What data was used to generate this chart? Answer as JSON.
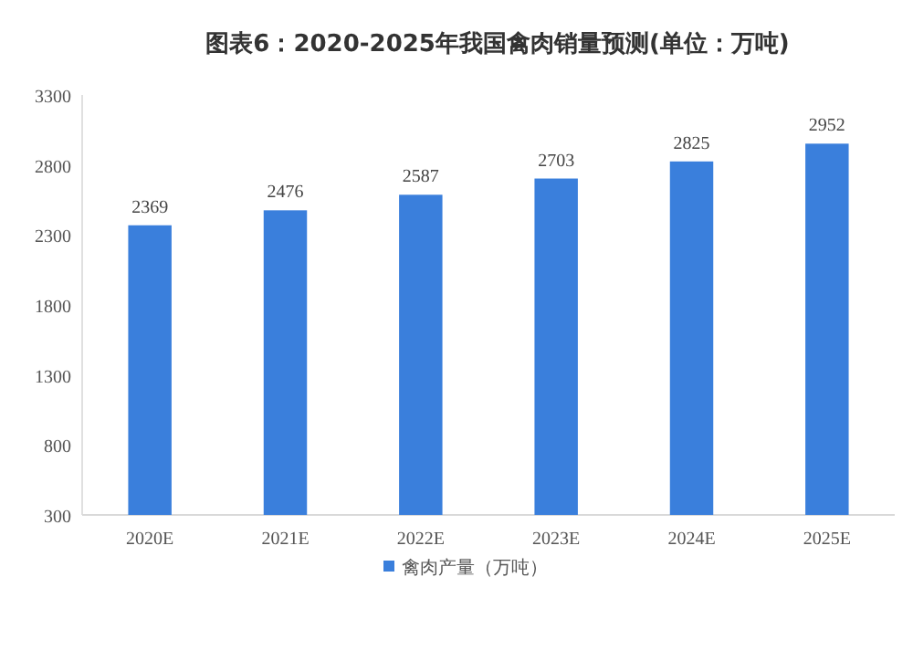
{
  "chart_data": {
    "type": "bar",
    "title": "图表6：2020-2025年我国禽肉销量预测(单位：万吨)",
    "categories": [
      "2020E",
      "2021E",
      "2022E",
      "2023E",
      "2024E",
      "2025E"
    ],
    "series": [
      {
        "name": "禽肉产量（万吨）",
        "color": "#3a7fdc",
        "values": [
          2369,
          2476,
          2587,
          2703,
          2825,
          2952
        ]
      }
    ],
    "ylim": [
      300,
      3300
    ],
    "yticks": [
      300,
      800,
      1300,
      1800,
      2300,
      2800,
      3300
    ],
    "data_labels": true,
    "legend": "bottom"
  }
}
